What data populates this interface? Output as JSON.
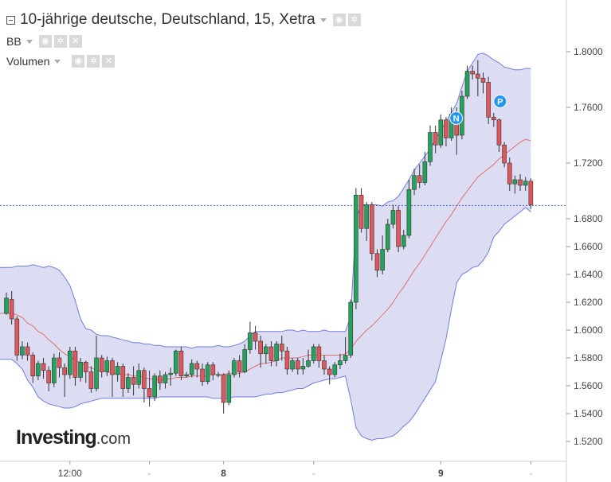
{
  "header": {
    "title": "10-jährige deutsche, Deutschland, 15, Xetra",
    "indicators": [
      {
        "label": "BB"
      },
      {
        "label": "Volumen"
      }
    ],
    "icons": [
      "eye-icon",
      "gear-icon",
      "close-icon"
    ]
  },
  "logo": {
    "brand": "Investing",
    "suffix": ".com"
  },
  "colors": {
    "up_candle": "#26a35a",
    "down_candle": "#e0575b",
    "band_fill": "#dcdcf2",
    "band_line": "#6f7fdc",
    "basis_line": "#e07070",
    "last_price_line": "#3a63c9",
    "marker": "#2196f3"
  },
  "chart_data": {
    "type": "candlestick",
    "y_axis": {
      "range": [
        1.51,
        1.81
      ],
      "ticks": [
        "1.8000",
        "1.7600",
        "1.7200",
        "1.6800",
        "1.6600",
        "1.6400",
        "1.6200",
        "1.6000",
        "1.5800",
        "1.5600",
        "1.5400",
        "1.5200"
      ]
    },
    "x_axis": {
      "ticks": [
        {
          "label": "12:00",
          "index": 12
        },
        {
          "label": "-",
          "index": 27
        },
        {
          "label": "8",
          "index": 41
        },
        {
          "label": "-",
          "index": 58
        },
        {
          "label": "9",
          "index": 82
        },
        {
          "label": "-",
          "index": 99
        }
      ]
    },
    "last_price": 1.6895,
    "markers": [
      {
        "label": "N",
        "index": 84,
        "value": 1.758
      },
      {
        "label": "P",
        "index": 92,
        "value": 1.77
      }
    ],
    "candles": [
      [
        1.612,
        1.623,
        1.611,
        1.627
      ],
      [
        1.622,
        1.608,
        1.604,
        1.628
      ],
      [
        1.608,
        1.582,
        1.578,
        1.61
      ],
      [
        1.582,
        1.588,
        1.579,
        1.592
      ],
      [
        1.588,
        1.582,
        1.578,
        1.591
      ],
      [
        1.582,
        1.567,
        1.562,
        1.584
      ],
      [
        1.567,
        1.576,
        1.564,
        1.578
      ],
      [
        1.576,
        1.571,
        1.565,
        1.58
      ],
      [
        1.571,
        1.562,
        1.556,
        1.574
      ],
      [
        1.562,
        1.58,
        1.559,
        1.583
      ],
      [
        1.58,
        1.573,
        1.566,
        1.584
      ],
      [
        1.573,
        1.568,
        1.552,
        1.576
      ],
      [
        1.568,
        1.585,
        1.565,
        1.588
      ],
      [
        1.585,
        1.566,
        1.56,
        1.588
      ],
      [
        1.566,
        1.577,
        1.563,
        1.58
      ],
      [
        1.577,
        1.57,
        1.562,
        1.578
      ],
      [
        1.57,
        1.558,
        1.555,
        1.574
      ],
      [
        1.558,
        1.58,
        1.556,
        1.596
      ],
      [
        1.58,
        1.57,
        1.566,
        1.582
      ],
      [
        1.57,
        1.578,
        1.567,
        1.581
      ],
      [
        1.578,
        1.568,
        1.552,
        1.58
      ],
      [
        1.568,
        1.574,
        1.563,
        1.577
      ],
      [
        1.574,
        1.558,
        1.552,
        1.576
      ],
      [
        1.558,
        1.566,
        1.555,
        1.569
      ],
      [
        1.566,
        1.561,
        1.553,
        1.574
      ],
      [
        1.561,
        1.571,
        1.558,
        1.576
      ],
      [
        1.571,
        1.558,
        1.548,
        1.573
      ],
      [
        1.558,
        1.552,
        1.545,
        1.571
      ],
      [
        1.552,
        1.567,
        1.549,
        1.569
      ],
      [
        1.567,
        1.562,
        1.557,
        1.571
      ],
      [
        1.562,
        1.568,
        1.558,
        1.57
      ],
      [
        1.568,
        1.569,
        1.56,
        1.573
      ],
      [
        1.569,
        1.585,
        1.567,
        1.586
      ],
      [
        1.585,
        1.567,
        1.564,
        1.588
      ],
      [
        1.567,
        1.568,
        1.566,
        1.57
      ],
      [
        1.568,
        1.576,
        1.566,
        1.579
      ],
      [
        1.576,
        1.572,
        1.566,
        1.578
      ],
      [
        1.572,
        1.563,
        1.56,
        1.576
      ],
      [
        1.563,
        1.575,
        1.561,
        1.577
      ],
      [
        1.575,
        1.568,
        1.564,
        1.577
      ],
      [
        1.568,
        1.568,
        1.566,
        1.57
      ],
      [
        1.568,
        1.548,
        1.54,
        1.569
      ],
      [
        1.548,
        1.568,
        1.546,
        1.571
      ],
      [
        1.568,
        1.578,
        1.566,
        1.58
      ],
      [
        1.578,
        1.57,
        1.566,
        1.582
      ],
      [
        1.57,
        1.586,
        1.569,
        1.59
      ],
      [
        1.586,
        1.598,
        1.583,
        1.606
      ],
      [
        1.598,
        1.592,
        1.586,
        1.603
      ],
      [
        1.592,
        1.583,
        1.573,
        1.596
      ],
      [
        1.583,
        1.588,
        1.576,
        1.59
      ],
      [
        1.588,
        1.578,
        1.574,
        1.592
      ],
      [
        1.578,
        1.59,
        1.574,
        1.592
      ],
      [
        1.59,
        1.585,
        1.578,
        1.596
      ],
      [
        1.585,
        1.572,
        1.568,
        1.588
      ],
      [
        1.572,
        1.578,
        1.57,
        1.58
      ],
      [
        1.578,
        1.572,
        1.568,
        1.58
      ],
      [
        1.572,
        1.574,
        1.568,
        1.58
      ],
      [
        1.574,
        1.578,
        1.573,
        1.586
      ],
      [
        1.578,
        1.588,
        1.576,
        1.59
      ],
      [
        1.588,
        1.578,
        1.573,
        1.59
      ],
      [
        1.578,
        1.572,
        1.568,
        1.582
      ],
      [
        1.572,
        1.568,
        1.561,
        1.574
      ],
      [
        1.568,
        1.575,
        1.566,
        1.577
      ],
      [
        1.575,
        1.578,
        1.572,
        1.583
      ],
      [
        1.578,
        1.582,
        1.576,
        1.595
      ],
      [
        1.582,
        1.62,
        1.58,
        1.622
      ],
      [
        1.62,
        1.697,
        1.615,
        1.702
      ],
      [
        1.697,
        1.673,
        1.67,
        1.702
      ],
      [
        1.673,
        1.69,
        1.664,
        1.692
      ],
      [
        1.69,
        1.655,
        1.65,
        1.692
      ],
      [
        1.655,
        1.643,
        1.638,
        1.658
      ],
      [
        1.643,
        1.658,
        1.64,
        1.668
      ],
      [
        1.658,
        1.676,
        1.656,
        1.68
      ],
      [
        1.676,
        1.686,
        1.673,
        1.69
      ],
      [
        1.686,
        1.66,
        1.656,
        1.689
      ],
      [
        1.66,
        1.668,
        1.658,
        1.672
      ],
      [
        1.668,
        1.701,
        1.666,
        1.708
      ],
      [
        1.701,
        1.711,
        1.697,
        1.716
      ],
      [
        1.711,
        1.706,
        1.702,
        1.719
      ],
      [
        1.706,
        1.721,
        1.704,
        1.728
      ],
      [
        1.721,
        1.742,
        1.718,
        1.747
      ],
      [
        1.742,
        1.733,
        1.727,
        1.747
      ],
      [
        1.733,
        1.751,
        1.731,
        1.755
      ],
      [
        1.751,
        1.738,
        1.732,
        1.753
      ],
      [
        1.738,
        1.755,
        1.736,
        1.76
      ],
      [
        1.755,
        1.74,
        1.726,
        1.76
      ],
      [
        1.74,
        1.768,
        1.737,
        1.772
      ],
      [
        1.768,
        1.786,
        1.766,
        1.79
      ],
      [
        1.786,
        1.784,
        1.78,
        1.79
      ],
      [
        1.784,
        1.781,
        1.768,
        1.794
      ],
      [
        1.781,
        1.778,
        1.77,
        1.785
      ],
      [
        1.778,
        1.753,
        1.748,
        1.782
      ],
      [
        1.753,
        1.751,
        1.746,
        1.756
      ],
      [
        1.751,
        1.733,
        1.728,
        1.752
      ],
      [
        1.733,
        1.72,
        1.717,
        1.735
      ],
      [
        1.72,
        1.705,
        1.7,
        1.724
      ],
      [
        1.705,
        1.708,
        1.698,
        1.711
      ],
      [
        1.708,
        1.704,
        1.7,
        1.712
      ],
      [
        1.704,
        1.707,
        1.7,
        1.71
      ],
      [
        1.707,
        1.69,
        1.687,
        1.709
      ]
    ],
    "bollinger": {
      "upper": [
        1.645,
        1.645,
        1.646,
        1.646,
        1.646,
        1.647,
        1.646,
        1.645,
        1.646,
        1.645,
        1.643,
        1.638,
        1.632,
        1.621,
        1.608,
        1.601,
        1.6,
        1.597,
        1.596,
        1.596,
        1.595,
        1.594,
        1.593,
        1.592,
        1.591,
        1.591,
        1.59,
        1.59,
        1.589,
        1.589,
        1.588,
        1.588,
        1.588,
        1.588,
        1.588,
        1.587,
        1.588,
        1.588,
        1.588,
        1.588,
        1.589,
        1.588,
        1.588,
        1.589,
        1.59,
        1.592,
        1.596,
        1.599,
        1.599,
        1.599,
        1.599,
        1.599,
        1.599,
        1.6,
        1.6,
        1.599,
        1.6,
        1.599,
        1.599,
        1.599,
        1.6,
        1.599,
        1.599,
        1.599,
        1.599,
        1.61,
        1.68,
        1.69,
        1.69,
        1.69,
        1.69,
        1.689,
        1.692,
        1.693,
        1.696,
        1.702,
        1.708,
        1.715,
        1.72,
        1.725,
        1.73,
        1.737,
        1.743,
        1.75,
        1.756,
        1.763,
        1.775,
        1.786,
        1.792,
        1.798,
        1.799,
        1.797,
        1.794,
        1.792,
        1.789,
        1.788,
        1.787,
        1.787,
        1.788,
        1.788
      ],
      "basis": [
        1.612,
        1.612,
        1.611,
        1.609,
        1.605,
        1.603,
        1.599,
        1.597,
        1.593,
        1.59,
        1.586,
        1.583,
        1.581,
        1.578,
        1.577,
        1.574,
        1.573,
        1.571,
        1.571,
        1.57,
        1.569,
        1.569,
        1.568,
        1.568,
        1.567,
        1.567,
        1.566,
        1.565,
        1.565,
        1.564,
        1.565,
        1.565,
        1.566,
        1.566,
        1.566,
        1.567,
        1.567,
        1.567,
        1.567,
        1.568,
        1.568,
        1.568,
        1.569,
        1.569,
        1.569,
        1.57,
        1.572,
        1.574,
        1.576,
        1.576,
        1.577,
        1.578,
        1.58,
        1.58,
        1.58,
        1.58,
        1.581,
        1.582,
        1.582,
        1.582,
        1.582,
        1.582,
        1.582,
        1.582,
        1.583,
        1.586,
        1.592,
        1.596,
        1.6,
        1.603,
        1.607,
        1.611,
        1.615,
        1.62,
        1.626,
        1.631,
        1.637,
        1.643,
        1.648,
        1.654,
        1.66,
        1.666,
        1.672,
        1.678,
        1.683,
        1.689,
        1.695,
        1.7,
        1.705,
        1.71,
        1.713,
        1.716,
        1.719,
        1.723,
        1.726,
        1.729,
        1.732,
        1.735,
        1.737,
        1.736
      ],
      "lower": [
        1.579,
        1.579,
        1.576,
        1.572,
        1.564,
        1.559,
        1.552,
        1.549,
        1.547,
        1.546,
        1.545,
        1.544,
        1.544,
        1.545,
        1.547,
        1.548,
        1.549,
        1.55,
        1.551,
        1.551,
        1.551,
        1.551,
        1.551,
        1.551,
        1.551,
        1.551,
        1.551,
        1.551,
        1.551,
        1.552,
        1.552,
        1.552,
        1.552,
        1.552,
        1.552,
        1.552,
        1.552,
        1.552,
        1.552,
        1.551,
        1.551,
        1.551,
        1.551,
        1.552,
        1.552,
        1.552,
        1.552,
        1.552,
        1.553,
        1.554,
        1.554,
        1.555,
        1.555,
        1.556,
        1.557,
        1.558,
        1.558,
        1.56,
        1.562,
        1.563,
        1.564,
        1.565,
        1.565,
        1.566,
        1.567,
        1.55,
        1.53,
        1.524,
        1.522,
        1.521,
        1.522,
        1.522,
        1.523,
        1.524,
        1.527,
        1.531,
        1.534,
        1.539,
        1.545,
        1.551,
        1.557,
        1.563,
        1.578,
        1.594,
        1.615,
        1.634,
        1.64,
        1.642,
        1.645,
        1.646,
        1.65,
        1.656,
        1.667,
        1.671,
        1.676,
        1.679,
        1.682,
        1.685,
        1.688,
        1.685
      ]
    }
  }
}
